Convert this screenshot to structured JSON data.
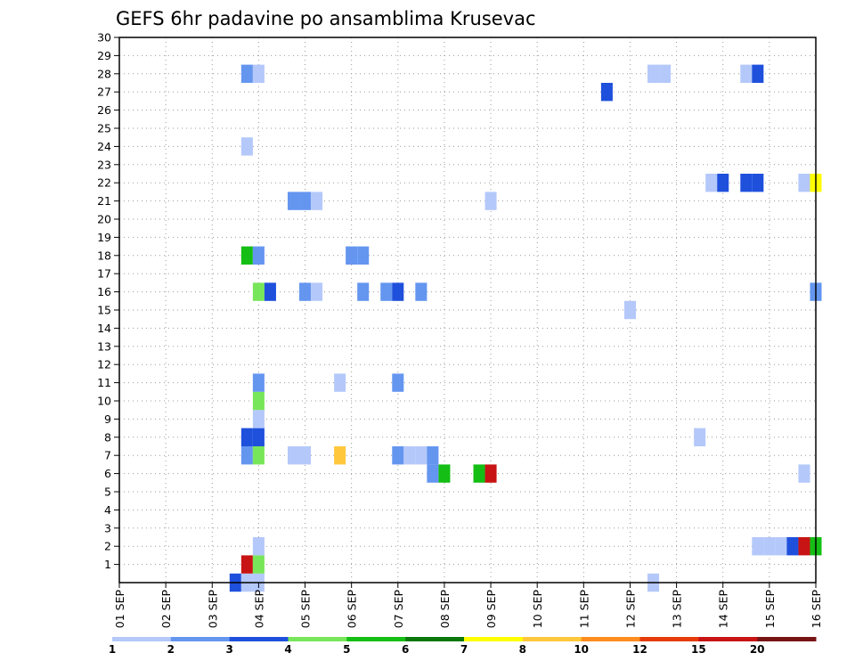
{
  "chart_data": {
    "type": "heatmap",
    "title": "GEFS 6hr padavine po ansamblima Krusevac",
    "xlabel": "",
    "ylabel": "",
    "x_ticks": [
      "01 SEP",
      "02 SEP",
      "03 SEP",
      "04 SEP",
      "05 SEP",
      "06 SEP",
      "07 SEP",
      "08 SEP",
      "09 SEP",
      "10 SEP",
      "11 SEP",
      "12 SEP",
      "13 SEP",
      "14 SEP",
      "15 SEP",
      "16 SEP"
    ],
    "xlim": [
      0,
      60
    ],
    "ylim": [
      0,
      30
    ],
    "y_ticks": [
      1,
      2,
      3,
      4,
      5,
      6,
      7,
      8,
      9,
      10,
      11,
      12,
      13,
      14,
      15,
      16,
      17,
      18,
      19,
      20,
      21,
      22,
      23,
      24,
      25,
      26,
      27,
      28,
      29,
      30
    ],
    "x_unit": "6-hour step from 01 SEP 00Z",
    "y_unit": "ensemble member",
    "value_unit": "mm / 6h",
    "grid": true,
    "colorbar": {
      "colors": [
        "#b4c8fa",
        "#6496f0",
        "#1e50dc",
        "#78e65a",
        "#14be14",
        "#0a780a",
        "#ffff00",
        "#ffc83c",
        "#ff8c1e",
        "#e63c0a",
        "#c81414",
        "#781414"
      ],
      "tick_labels": [
        "1",
        "2",
        "3",
        "4",
        "5",
        "6",
        "7",
        "8",
        "10",
        "12",
        "15",
        "20"
      ]
    },
    "cells": [
      {
        "x": 10,
        "y": 0,
        "v": 3
      },
      {
        "x": 11,
        "y": 0,
        "v": 1
      },
      {
        "x": 12,
        "y": 0,
        "v": 1
      },
      {
        "x": 46,
        "y": 0,
        "v": 1
      },
      {
        "x": 11,
        "y": 1,
        "v": 15
      },
      {
        "x": 12,
        "y": 1,
        "v": 4
      },
      {
        "x": 12,
        "y": 2,
        "v": 1
      },
      {
        "x": 55,
        "y": 2,
        "v": 1
      },
      {
        "x": 56,
        "y": 2,
        "v": 1
      },
      {
        "x": 57,
        "y": 2,
        "v": 1
      },
      {
        "x": 58,
        "y": 2,
        "v": 3
      },
      {
        "x": 59,
        "y": 2,
        "v": 15
      },
      {
        "x": 60,
        "y": 2,
        "v": 5
      },
      {
        "x": 27,
        "y": 6,
        "v": 2
      },
      {
        "x": 28,
        "y": 6,
        "v": 5
      },
      {
        "x": 31,
        "y": 6,
        "v": 5
      },
      {
        "x": 32,
        "y": 6,
        "v": 15
      },
      {
        "x": 59,
        "y": 6,
        "v": 1
      },
      {
        "x": 11,
        "y": 7,
        "v": 2
      },
      {
        "x": 12,
        "y": 7,
        "v": 4
      },
      {
        "x": 15,
        "y": 7,
        "v": 1
      },
      {
        "x": 16,
        "y": 7,
        "v": 1
      },
      {
        "x": 19,
        "y": 7,
        "v": 8
      },
      {
        "x": 24,
        "y": 7,
        "v": 2
      },
      {
        "x": 25,
        "y": 7,
        "v": 1
      },
      {
        "x": 26,
        "y": 7,
        "v": 1
      },
      {
        "x": 27,
        "y": 7,
        "v": 2
      },
      {
        "x": 11,
        "y": 8,
        "v": 3
      },
      {
        "x": 12,
        "y": 8,
        "v": 3
      },
      {
        "x": 50,
        "y": 8,
        "v": 1
      },
      {
        "x": 12,
        "y": 9,
        "v": 1
      },
      {
        "x": 12,
        "y": 10,
        "v": 4
      },
      {
        "x": 12,
        "y": 11,
        "v": 2
      },
      {
        "x": 19,
        "y": 11,
        "v": 1
      },
      {
        "x": 24,
        "y": 11,
        "v": 2
      },
      {
        "x": 44,
        "y": 15,
        "v": 1
      },
      {
        "x": 12,
        "y": 16,
        "v": 4
      },
      {
        "x": 13,
        "y": 16,
        "v": 3
      },
      {
        "x": 16,
        "y": 16,
        "v": 2
      },
      {
        "x": 17,
        "y": 16,
        "v": 1
      },
      {
        "x": 21,
        "y": 16,
        "v": 2
      },
      {
        "x": 23,
        "y": 16,
        "v": 2
      },
      {
        "x": 24,
        "y": 16,
        "v": 3
      },
      {
        "x": 26,
        "y": 16,
        "v": 2
      },
      {
        "x": 60,
        "y": 16,
        "v": 2
      },
      {
        "x": 11,
        "y": 18,
        "v": 5
      },
      {
        "x": 12,
        "y": 18,
        "v": 2
      },
      {
        "x": 20,
        "y": 18,
        "v": 2
      },
      {
        "x": 21,
        "y": 18,
        "v": 2
      },
      {
        "x": 15,
        "y": 21,
        "v": 2
      },
      {
        "x": 16,
        "y": 21,
        "v": 2
      },
      {
        "x": 17,
        "y": 21,
        "v": 1
      },
      {
        "x": 32,
        "y": 21,
        "v": 1
      },
      {
        "x": 51,
        "y": 22,
        "v": 1
      },
      {
        "x": 52,
        "y": 22,
        "v": 3
      },
      {
        "x": 54,
        "y": 22,
        "v": 3
      },
      {
        "x": 55,
        "y": 22,
        "v": 3
      },
      {
        "x": 59,
        "y": 22,
        "v": 1
      },
      {
        "x": 60,
        "y": 22,
        "v": 7
      },
      {
        "x": 11,
        "y": 24,
        "v": 1
      },
      {
        "x": 42,
        "y": 27,
        "v": 3
      },
      {
        "x": 11,
        "y": 28,
        "v": 2
      },
      {
        "x": 12,
        "y": 28,
        "v": 1
      },
      {
        "x": 46,
        "y": 28,
        "v": 1
      },
      {
        "x": 47,
        "y": 28,
        "v": 1
      },
      {
        "x": 54,
        "y": 28,
        "v": 1
      },
      {
        "x": 55,
        "y": 28,
        "v": 3
      }
    ]
  }
}
